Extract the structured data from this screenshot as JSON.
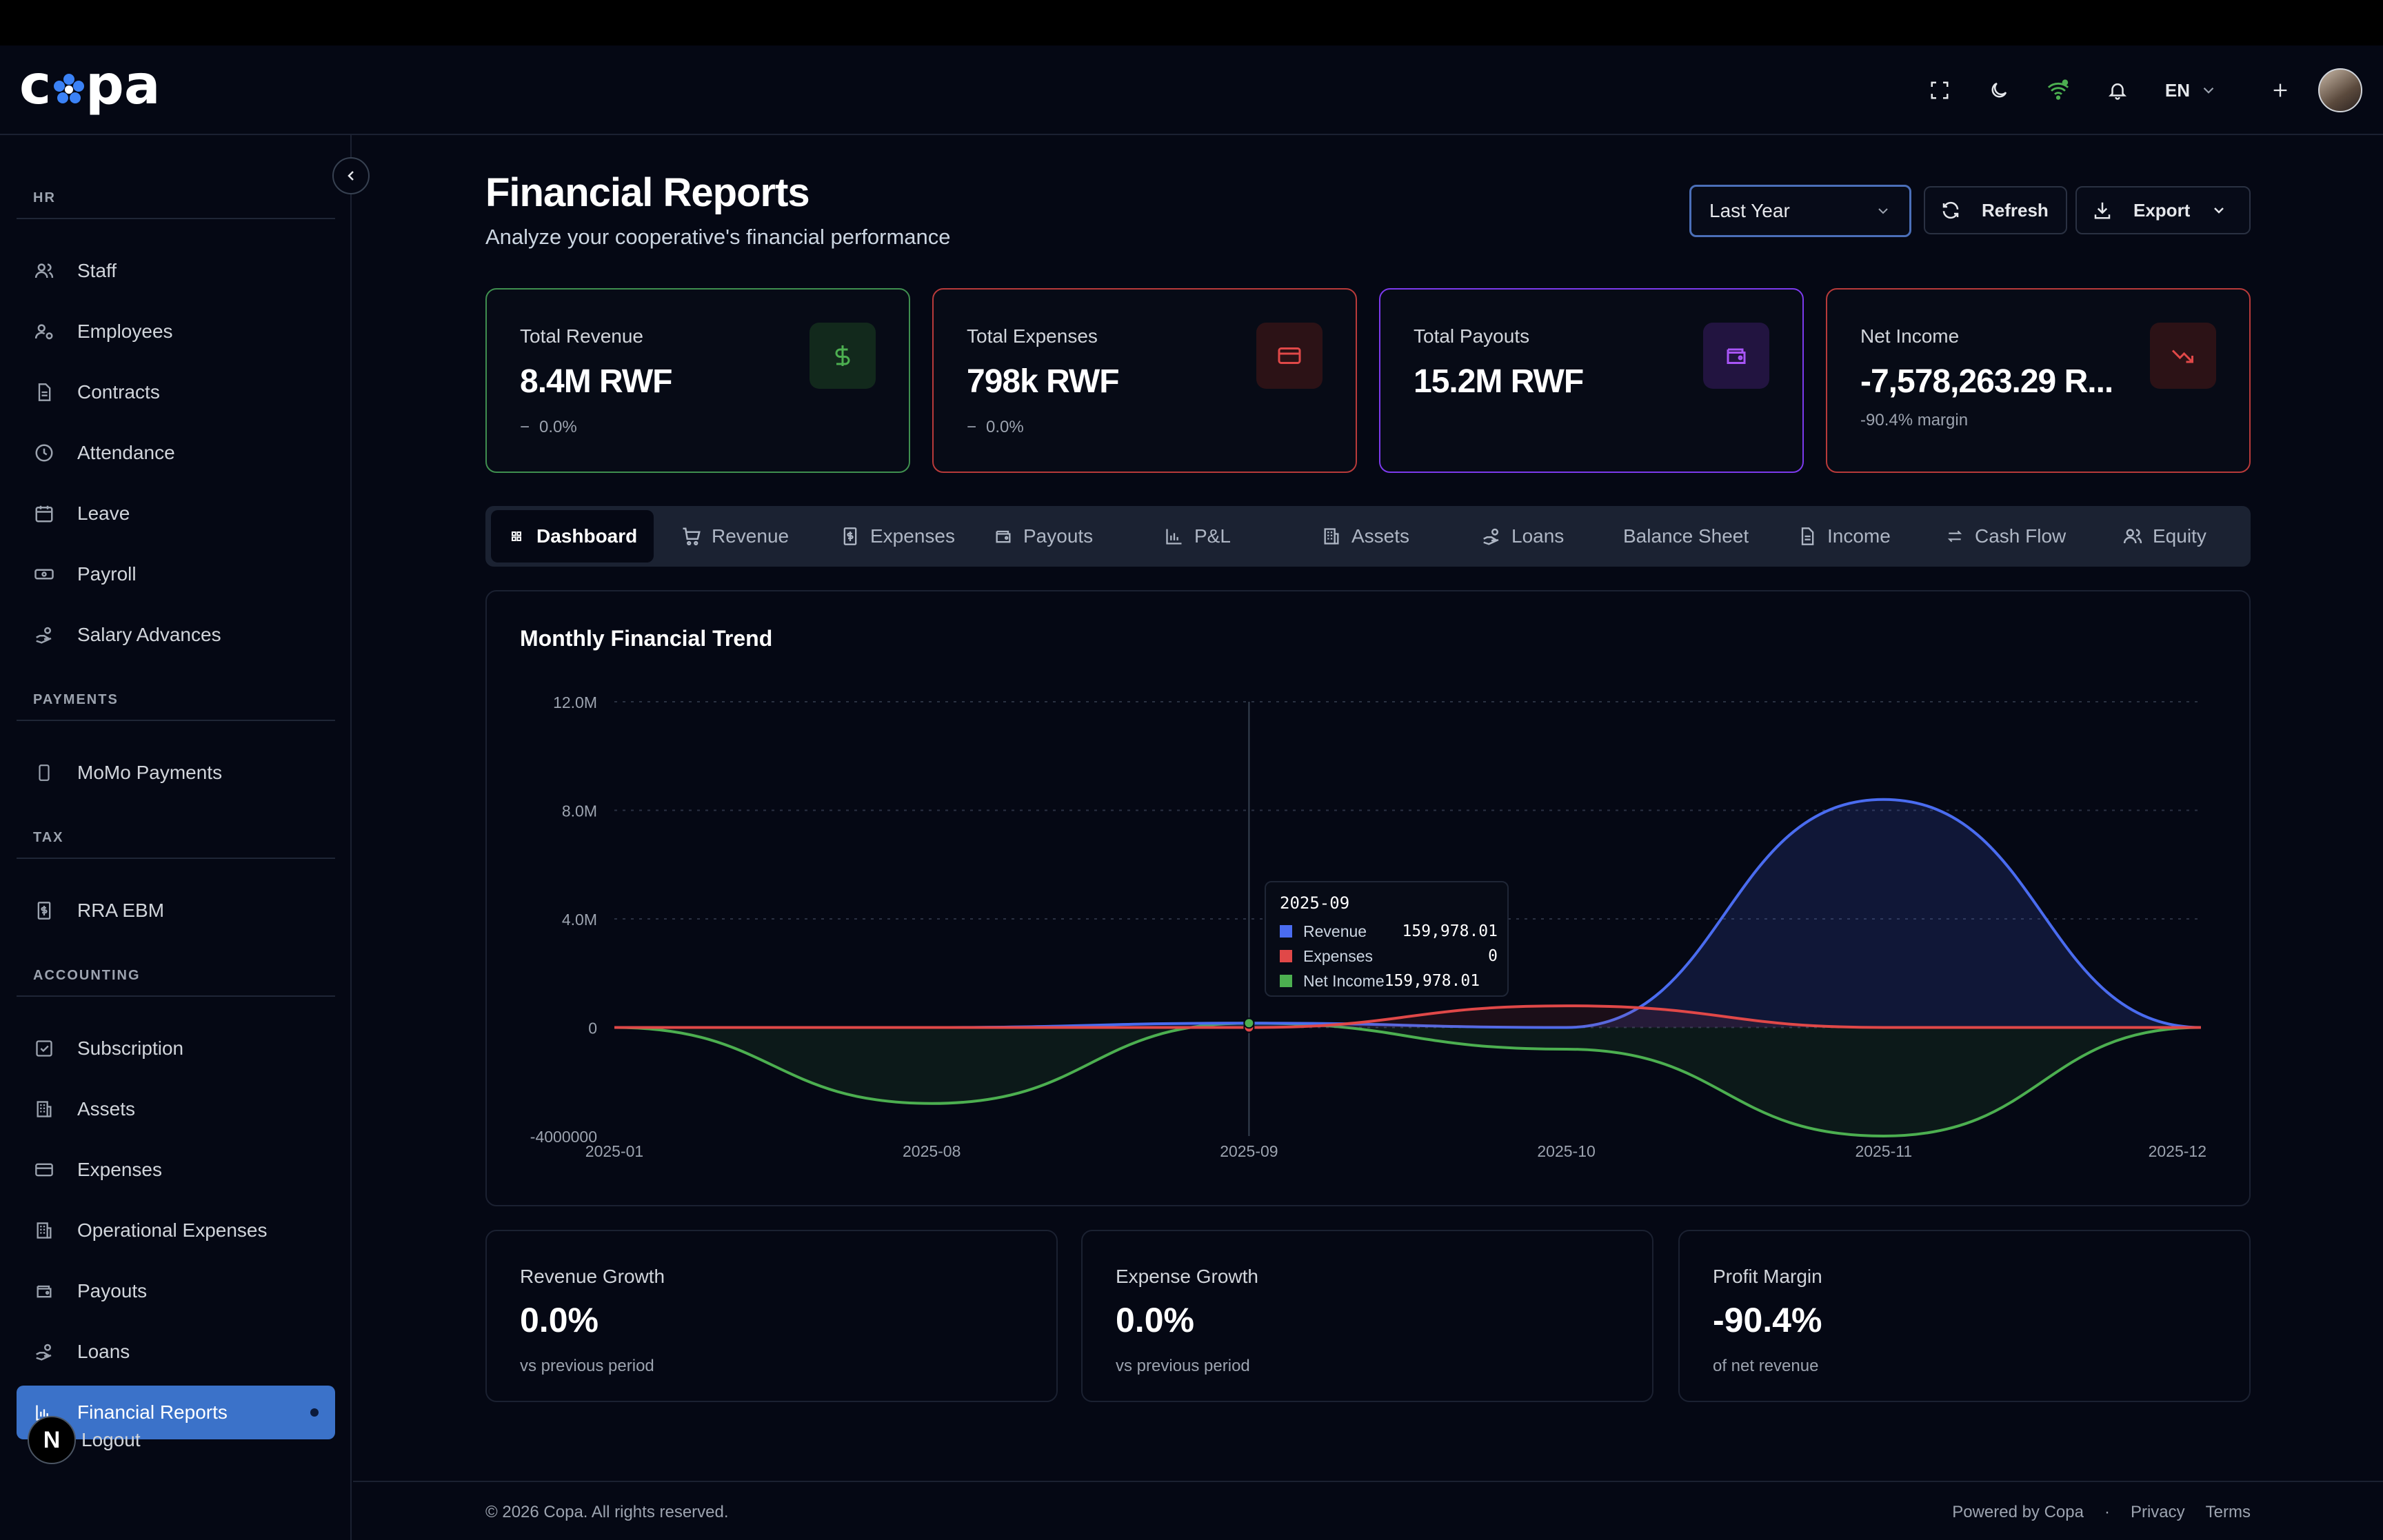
{
  "header": {
    "logo_text": "copa",
    "language": "EN",
    "icons": [
      "fullscreen-icon",
      "moon-icon",
      "wifi-icon",
      "bell-icon",
      "chevron-down-icon",
      "plus-icon"
    ]
  },
  "sidebar": {
    "sections": [
      {
        "title": "HR",
        "items": [
          {
            "label": "Staff",
            "icon": "users-icon"
          },
          {
            "label": "Employees",
            "icon": "user-gear-icon"
          },
          {
            "label": "Contracts",
            "icon": "document-icon"
          },
          {
            "label": "Attendance",
            "icon": "clock-icon"
          },
          {
            "label": "Leave",
            "icon": "calendar-icon"
          },
          {
            "label": "Payroll",
            "icon": "banknote-icon"
          },
          {
            "label": "Salary Advances",
            "icon": "hand-coins-icon"
          }
        ]
      },
      {
        "title": "PAYMENTS",
        "items": [
          {
            "label": "MoMo Payments",
            "icon": "phone-icon"
          }
        ]
      },
      {
        "title": "TAX",
        "items": [
          {
            "label": "RRA EBM",
            "icon": "receipt-icon"
          }
        ]
      },
      {
        "title": "ACCOUNTING",
        "items": [
          {
            "label": "Subscription",
            "icon": "check-square-icon"
          },
          {
            "label": "Assets",
            "icon": "building-icon"
          },
          {
            "label": "Expenses",
            "icon": "credit-card-icon"
          },
          {
            "label": "Operational Expenses",
            "icon": "building-icon"
          },
          {
            "label": "Payouts",
            "icon": "wallet-icon"
          },
          {
            "label": "Loans",
            "icon": "hand-coins-icon"
          },
          {
            "label": "Financial Reports",
            "icon": "bar-chart-icon",
            "active": true
          }
        ]
      }
    ],
    "logout_label": "Logout",
    "badge_letter": "N"
  },
  "page": {
    "title": "Financial Reports",
    "subtitle": "Analyze your cooperative's financial performance",
    "period": "Last Year",
    "refresh_label": "Refresh",
    "export_label": "Export"
  },
  "kpis": [
    {
      "label": "Total Revenue",
      "value": "8.4M RWF",
      "sub": "0.0%",
      "icon": "dollar-icon",
      "accent": "#3f8f4f"
    },
    {
      "label": "Total Expenses",
      "value": "798k RWF",
      "sub": "0.0%",
      "icon": "credit-card-icon",
      "accent": "#b83a3a"
    },
    {
      "label": "Total Payouts",
      "value": "15.2M RWF",
      "sub": "",
      "icon": "wallet-icon",
      "accent": "#7c3aed"
    },
    {
      "label": "Net Income",
      "value": "-7,578,263.29 R...",
      "sub": "-90.4% margin",
      "icon": "trending-down-icon",
      "accent": "#b83a3a"
    }
  ],
  "tabs": [
    {
      "label": "Dashboard",
      "icon": "grid-icon",
      "active": true
    },
    {
      "label": "Revenue",
      "icon": "cart-icon"
    },
    {
      "label": "Expenses",
      "icon": "receipt-icon"
    },
    {
      "label": "Payouts",
      "icon": "wallet-icon"
    },
    {
      "label": "P&L",
      "icon": "bar-chart-icon"
    },
    {
      "label": "Assets",
      "icon": "building-icon"
    },
    {
      "label": "Loans",
      "icon": "hand-coins-icon"
    },
    {
      "label": "Balance Sheet",
      "icon": ""
    },
    {
      "label": "Income",
      "icon": "document-icon"
    },
    {
      "label": "Cash Flow",
      "icon": "arrows-icon"
    },
    {
      "label": "Equity",
      "icon": "users-icon"
    }
  ],
  "chart_data": {
    "type": "area",
    "title": "Monthly Financial Trend",
    "categories": [
      "2025-01",
      "2025-08",
      "2025-09",
      "2025-10",
      "2025-11",
      "2025-12"
    ],
    "y_ticks": [
      "12.0M",
      "8.0M",
      "4.0M",
      "0",
      "-4000000"
    ],
    "ylim": [
      -4000000,
      12000000
    ],
    "series": [
      {
        "name": "Revenue",
        "color": "#4a6cf0",
        "values": [
          0,
          0,
          159978.01,
          0,
          8400000,
          0
        ]
      },
      {
        "name": "Expenses",
        "color": "#e04848",
        "values": [
          0,
          0,
          0,
          798000,
          0,
          0
        ]
      },
      {
        "name": "Net Income",
        "color": "#4caf50",
        "values": [
          0,
          -2800000,
          159978.01,
          -800000,
          -4000000,
          0
        ]
      }
    ],
    "grid": true,
    "tooltip": {
      "title": "2025-09",
      "rows": [
        {
          "name": "Revenue",
          "value": "159,978.01",
          "color": "#4a6cf0"
        },
        {
          "name": "Expenses",
          "value": "0",
          "color": "#e04848"
        },
        {
          "name": "Net Income",
          "value": "159,978.01",
          "color": "#4caf50"
        }
      ]
    }
  },
  "stats": [
    {
      "label": "Revenue Growth",
      "value": "0.0%",
      "sub": "vs previous period"
    },
    {
      "label": "Expense Growth",
      "value": "0.0%",
      "sub": "vs previous period"
    },
    {
      "label": "Profit Margin",
      "value": "-90.4%",
      "sub": "of net revenue"
    }
  ],
  "footer": {
    "copyright": "© 2026 Copa. All rights reserved.",
    "powered": "Powered by Copa",
    "separator": "·",
    "privacy": "Privacy",
    "terms": "Terms"
  }
}
